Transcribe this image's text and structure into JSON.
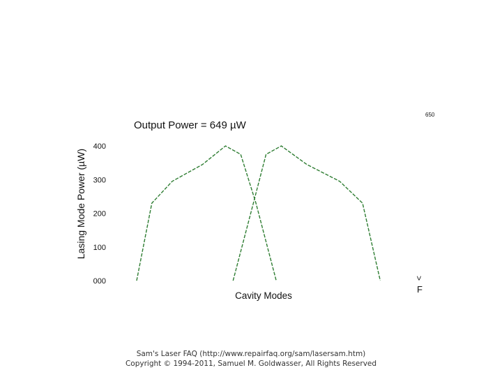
{
  "chart_data": {
    "type": "line",
    "title": "Output Power = 649 µW",
    "corner_label": "650",
    "xlabel": "Cavity Modes",
    "ylabel": "Lasing Mode Power (µW)",
    "x_end_label_top": ">",
    "x_end_label_bottom": "F",
    "yticks": [
      "000",
      "100",
      "200",
      "300",
      "400"
    ],
    "ylim": [
      0,
      400
    ],
    "xlim": [
      0,
      100
    ],
    "line_color": "#2e7d32",
    "series": [
      {
        "x": [
          0,
          6,
          14,
          26,
          35,
          41,
          47,
          55
        ],
        "y": [
          0,
          230,
          295,
          345,
          400,
          375,
          230,
          0
        ]
      },
      {
        "x": [
          38,
          46,
          51,
          57,
          67,
          80,
          89,
          96
        ],
        "y": [
          0,
          230,
          375,
          400,
          345,
          295,
          230,
          0
        ]
      }
    ]
  },
  "footer": {
    "line1": "Sam's Laser FAQ (http://www.repairfaq.org/sam/lasersam.htm)",
    "line2": "Copyright © 1994-2011, Samuel M. Goldwasser, All Rights Reserved"
  }
}
